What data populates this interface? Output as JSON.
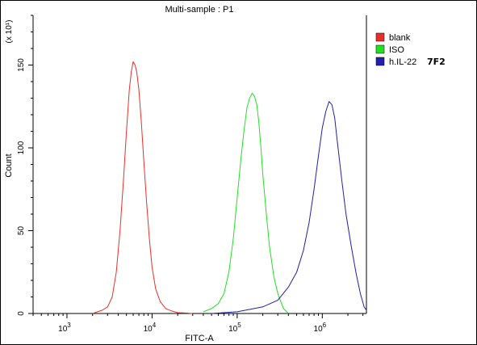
{
  "chart_data": {
    "type": "line",
    "title": "Multi-sample : P1",
    "xlabel": "FITC-A",
    "ylabel": "Count",
    "y_multiplier": "(x 10¹)",
    "x_scale": "log",
    "xlim": [
      400,
      3300000
    ],
    "ylim": [
      0,
      180
    ],
    "x_ticks": [
      {
        "value": 1000,
        "base": "10",
        "exp": "3"
      },
      {
        "value": 10000,
        "base": "10",
        "exp": "4"
      },
      {
        "value": 100000,
        "base": "10",
        "exp": "5"
      },
      {
        "value": 1000000,
        "base": "10",
        "exp": "6"
      }
    ],
    "y_ticks": [
      0,
      50,
      100,
      150
    ],
    "grid": false,
    "legend_position": "top-right",
    "series": [
      {
        "name": "blank",
        "color": "#e8302a",
        "x": [
          2000,
          2600,
          3000,
          3400,
          3800,
          4200,
          4600,
          5000,
          5400,
          5700,
          6000,
          6300,
          6600,
          7000,
          7500,
          8000,
          8600,
          9300,
          10000,
          11000,
          12500,
          14500,
          17000,
          20000,
          25000,
          30000
        ],
        "y": [
          0,
          2,
          4,
          10,
          25,
          50,
          80,
          110,
          135,
          146,
          152,
          150,
          146,
          135,
          115,
          92,
          68,
          45,
          28,
          15,
          7,
          3,
          1.5,
          0.5,
          0.3,
          0
        ]
      },
      {
        "name": "ISO",
        "color": "#22e022",
        "x": [
          40000,
          50000,
          60000,
          70000,
          80000,
          90000,
          100000,
          110000,
          120000,
          130000,
          140000,
          150000,
          160000,
          170000,
          180000,
          190000,
          200000,
          220000,
          240000,
          270000,
          300000,
          350000,
          400000
        ],
        "y": [
          1,
          3,
          6,
          12,
          25,
          45,
          70,
          92,
          110,
          124,
          130,
          133,
          131,
          126,
          115,
          100,
          84,
          60,
          40,
          22,
          12,
          3,
          0
        ]
      },
      {
        "name": "h.IL-22",
        "color": "#2020a8",
        "x": [
          50000,
          100000,
          200000,
          300000,
          400000,
          500000,
          600000,
          700000,
          800000,
          900000,
          1000000,
          1100000,
          1200000,
          1300000,
          1400000,
          1500000,
          1700000,
          1900000,
          2200000,
          2500000,
          2800000,
          3100000,
          3300000
        ],
        "y": [
          0,
          1,
          4,
          8,
          16,
          25,
          38,
          55,
          75,
          95,
          112,
          122,
          128,
          126,
          118,
          104,
          80,
          60,
          40,
          24,
          12,
          4,
          2
        ]
      }
    ],
    "annotation": "7F2"
  }
}
